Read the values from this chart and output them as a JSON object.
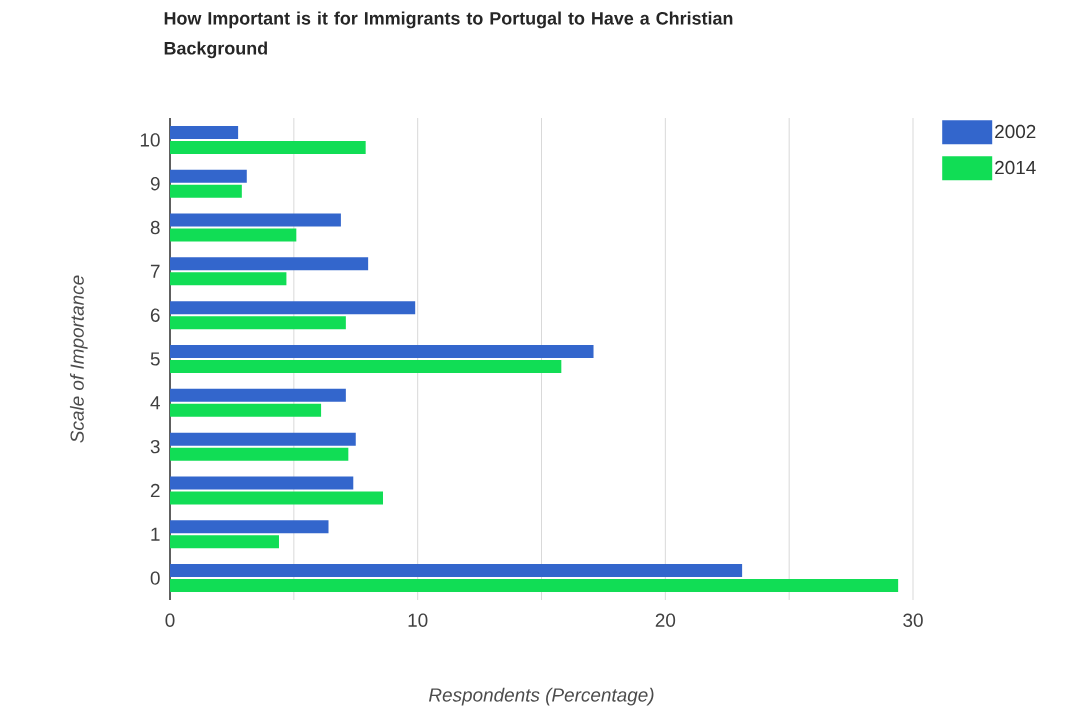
{
  "chart_data": {
    "type": "bar",
    "orientation": "horizontal",
    "title": "How Important is it for Immigrants to Portugal to Have a Christian Background",
    "xlabel": "Respondents (Percentage)",
    "ylabel": "Scale of Importance",
    "categories": [
      "10",
      "9",
      "8",
      "7",
      "6",
      "5",
      "4",
      "3",
      "2",
      "1",
      "0"
    ],
    "series": [
      {
        "name": "2002",
        "color": "#3366cc",
        "values": [
          2.75,
          3.1,
          6.9,
          8.0,
          9.9,
          17.1,
          7.1,
          7.5,
          7.4,
          6.4,
          23.1
        ]
      },
      {
        "name": "2014",
        "color": "#11dd55",
        "values": [
          7.9,
          2.9,
          5.1,
          4.7,
          7.1,
          15.8,
          6.1,
          7.2,
          8.6,
          4.4,
          29.4
        ]
      }
    ],
    "xlim": [
      0,
      30
    ],
    "xticks": [
      0,
      {
        "value": 5,
        "label": null
      },
      10,
      {
        "value": 15,
        "label": null
      },
      20,
      {
        "value": 25,
        "label": null
      },
      30
    ],
    "grid": "x",
    "legend": "top right"
  }
}
